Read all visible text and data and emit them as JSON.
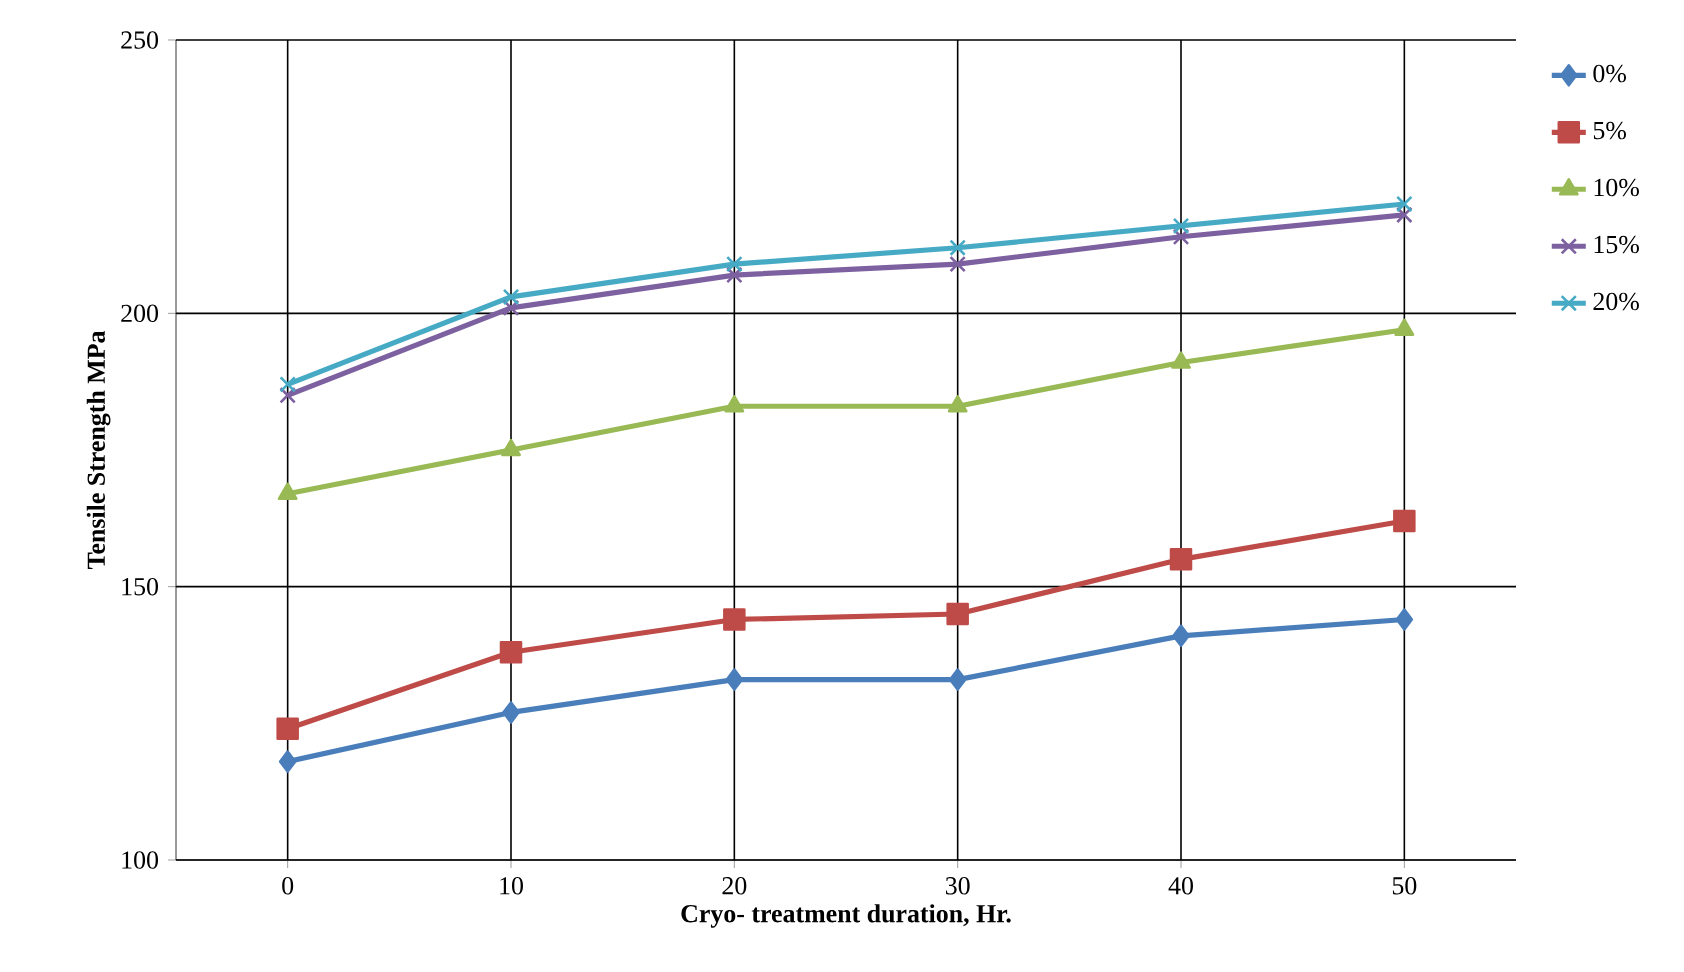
{
  "chart_data": {
    "type": "line",
    "xlabel": "Cryo- treatment duration, Hr.",
    "ylabel": "Tensile Strength MPa",
    "categories": [
      "0",
      "10",
      "20",
      "30",
      "40",
      "50"
    ],
    "ylim": [
      100,
      250
    ],
    "yticks": [
      100,
      150,
      200,
      250
    ],
    "grid": true,
    "legend": "right",
    "series": [
      {
        "name": "0%",
        "color": "#4a7ebb",
        "marker": "diamond",
        "values": [
          118,
          127,
          133,
          133,
          141,
          144
        ]
      },
      {
        "name": "5%",
        "color": "#be4b48",
        "marker": "square",
        "values": [
          124,
          138,
          144,
          145,
          155,
          162
        ]
      },
      {
        "name": "10%",
        "color": "#98b954",
        "marker": "triangle",
        "values": [
          167,
          175,
          183,
          183,
          191,
          197
        ]
      },
      {
        "name": "15%",
        "color": "#7d60a0",
        "marker": "cross",
        "values": [
          185,
          201,
          207,
          209,
          214,
          218
        ]
      },
      {
        "name": "20%",
        "color": "#46aac5",
        "marker": "cross",
        "values": [
          187,
          203,
          209,
          212,
          216,
          220
        ]
      }
    ]
  }
}
